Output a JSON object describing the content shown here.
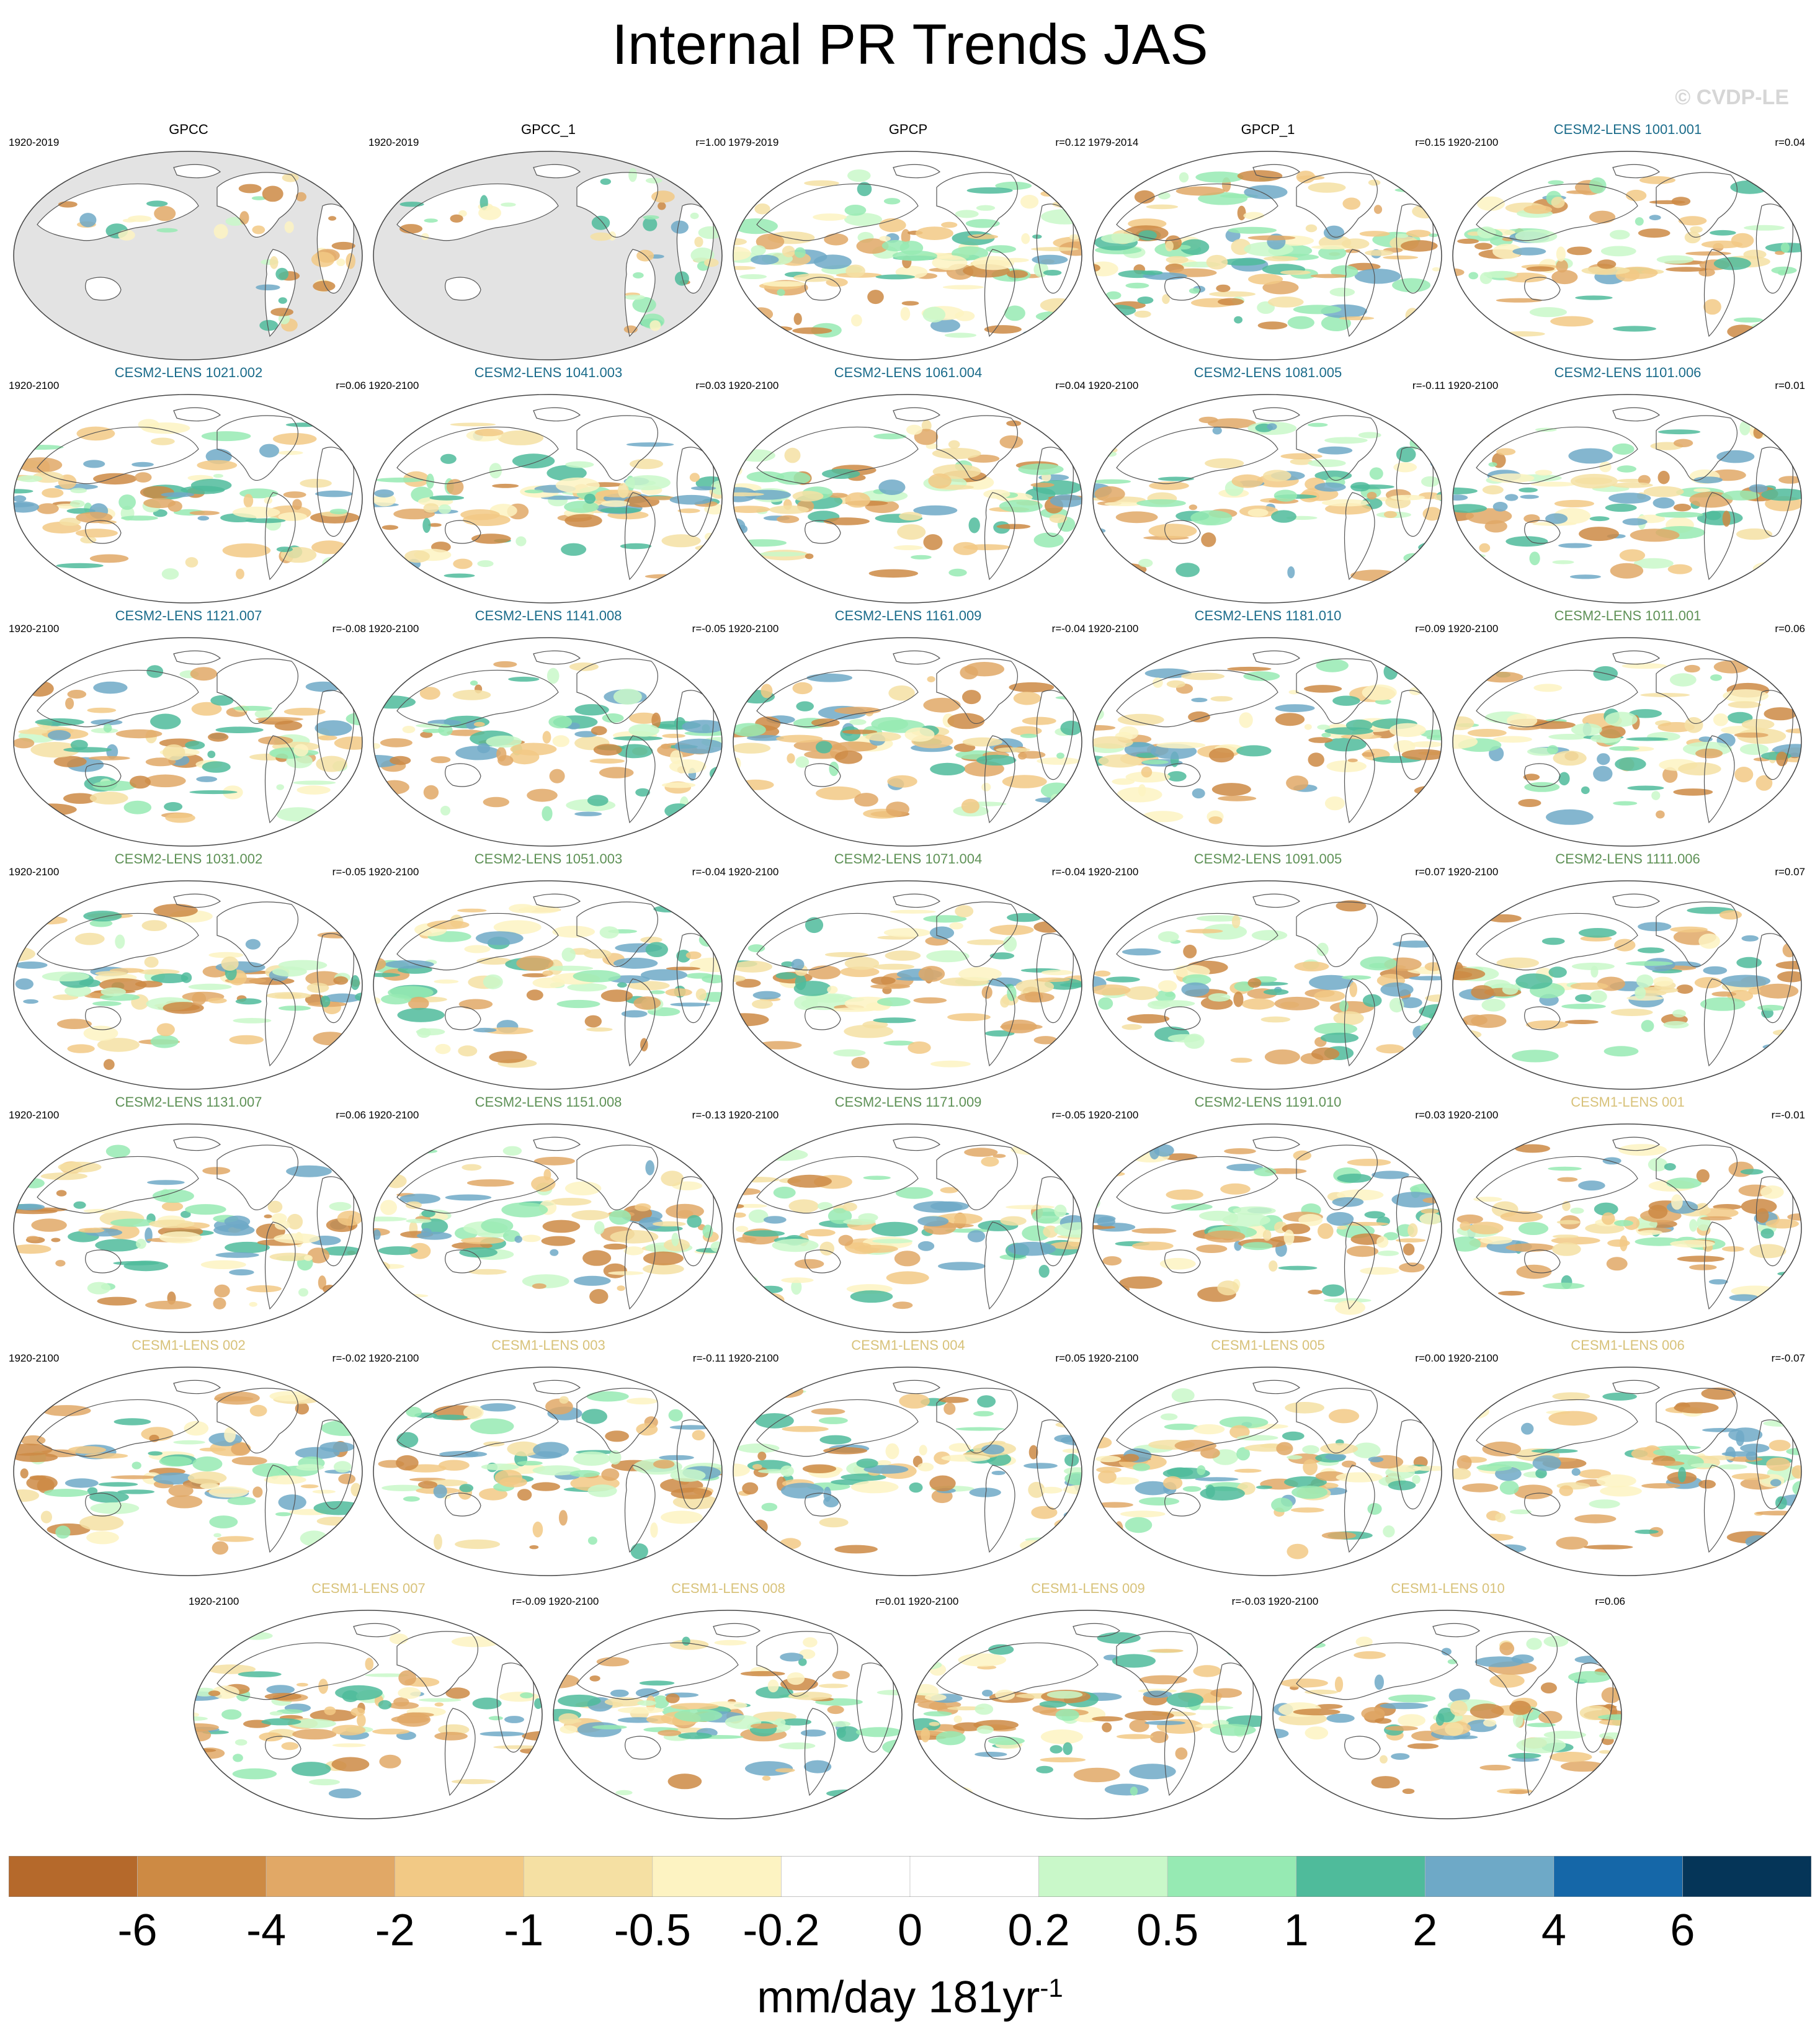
{
  "title": "Internal PR Trends JAS",
  "watermark": "© CVDP-LE",
  "colors": {
    "observation_title": "#000000",
    "cesm2_smbb_title": "#1a6b8a",
    "cesm2_cmip6_title": "#5e9156",
    "cesm1_title": "#d8c27a",
    "map_outline": "#555555",
    "missing_fill": "#e3e3e3",
    "ocean_fill": "#ffffff"
  },
  "chart_data": {
    "type": "heatmap",
    "title": "Internal PR Trends JAS",
    "panels": [
      {
        "name": "GPCC",
        "dates": "1920-2019",
        "corr": "",
        "group": "obs",
        "missing_ocean": true
      },
      {
        "name": "GPCC_1",
        "dates": "1920-2019",
        "corr": "r=1.00",
        "group": "obs",
        "missing_ocean": true
      },
      {
        "name": "GPCP",
        "dates": "1979-2019",
        "corr": "r=0.12",
        "group": "obs",
        "missing_ocean": false
      },
      {
        "name": "GPCP_1",
        "dates": "1979-2014",
        "corr": "r=0.15",
        "group": "obs",
        "missing_ocean": false
      },
      {
        "name": "CESM2-LENS 1001.001",
        "dates": "1920-2100",
        "corr": "r=0.04",
        "group": "cesm2_smbb"
      },
      {
        "name": "CESM2-LENS 1021.002",
        "dates": "1920-2100",
        "corr": "r=0.06",
        "group": "cesm2_smbb"
      },
      {
        "name": "CESM2-LENS 1041.003",
        "dates": "1920-2100",
        "corr": "r=0.03",
        "group": "cesm2_smbb"
      },
      {
        "name": "CESM2-LENS 1061.004",
        "dates": "1920-2100",
        "corr": "r=0.04",
        "group": "cesm2_smbb"
      },
      {
        "name": "CESM2-LENS 1081.005",
        "dates": "1920-2100",
        "corr": "r=-0.11",
        "group": "cesm2_smbb"
      },
      {
        "name": "CESM2-LENS 1101.006",
        "dates": "1920-2100",
        "corr": "r=0.01",
        "group": "cesm2_smbb"
      },
      {
        "name": "CESM2-LENS 1121.007",
        "dates": "1920-2100",
        "corr": "r=-0.08",
        "group": "cesm2_smbb"
      },
      {
        "name": "CESM2-LENS 1141.008",
        "dates": "1920-2100",
        "corr": "r=-0.05",
        "group": "cesm2_smbb"
      },
      {
        "name": "CESM2-LENS 1161.009",
        "dates": "1920-2100",
        "corr": "r=-0.04",
        "group": "cesm2_smbb"
      },
      {
        "name": "CESM2-LENS 1181.010",
        "dates": "1920-2100",
        "corr": "r=0.09",
        "group": "cesm2_smbb"
      },
      {
        "name": "CESM2-LENS 1011.001",
        "dates": "1920-2100",
        "corr": "r=0.06",
        "group": "cesm2_cmip6"
      },
      {
        "name": "CESM2-LENS 1031.002",
        "dates": "1920-2100",
        "corr": "r=-0.05",
        "group": "cesm2_cmip6"
      },
      {
        "name": "CESM2-LENS 1051.003",
        "dates": "1920-2100",
        "corr": "r=-0.04",
        "group": "cesm2_cmip6"
      },
      {
        "name": "CESM2-LENS 1071.004",
        "dates": "1920-2100",
        "corr": "r=-0.04",
        "group": "cesm2_cmip6"
      },
      {
        "name": "CESM2-LENS 1091.005",
        "dates": "1920-2100",
        "corr": "r=0.07",
        "group": "cesm2_cmip6"
      },
      {
        "name": "CESM2-LENS 1111.006",
        "dates": "1920-2100",
        "corr": "r=0.07",
        "group": "cesm2_cmip6"
      },
      {
        "name": "CESM2-LENS 1131.007",
        "dates": "1920-2100",
        "corr": "r=0.06",
        "group": "cesm2_cmip6"
      },
      {
        "name": "CESM2-LENS 1151.008",
        "dates": "1920-2100",
        "corr": "r=-0.13",
        "group": "cesm2_cmip6"
      },
      {
        "name": "CESM2-LENS 1171.009",
        "dates": "1920-2100",
        "corr": "r=-0.05",
        "group": "cesm2_cmip6"
      },
      {
        "name": "CESM2-LENS 1191.010",
        "dates": "1920-2100",
        "corr": "r=0.03",
        "group": "cesm2_cmip6"
      },
      {
        "name": "CESM1-LENS 001",
        "dates": "1920-2100",
        "corr": "r=-0.01",
        "group": "cesm1"
      },
      {
        "name": "CESM1-LENS 002",
        "dates": "1920-2100",
        "corr": "r=-0.02",
        "group": "cesm1"
      },
      {
        "name": "CESM1-LENS 003",
        "dates": "1920-2100",
        "corr": "r=-0.11",
        "group": "cesm1"
      },
      {
        "name": "CESM1-LENS 004",
        "dates": "1920-2100",
        "corr": "r=0.05",
        "group": "cesm1"
      },
      {
        "name": "CESM1-LENS 005",
        "dates": "1920-2100",
        "corr": "r=0.00",
        "group": "cesm1"
      },
      {
        "name": "CESM1-LENS 006",
        "dates": "1920-2100",
        "corr": "r=-0.07",
        "group": "cesm1"
      },
      {
        "name": "CESM1-LENS 007",
        "dates": "1920-2100",
        "corr": "r=-0.09",
        "group": "cesm1"
      },
      {
        "name": "CESM1-LENS 008",
        "dates": "1920-2100",
        "corr": "r=0.01",
        "group": "cesm1"
      },
      {
        "name": "CESM1-LENS 009",
        "dates": "1920-2100",
        "corr": "r=-0.03",
        "group": "cesm1"
      },
      {
        "name": "CESM1-LENS 010",
        "dates": "1920-2100",
        "corr": "r=0.06",
        "group": "cesm1"
      }
    ],
    "colorbar": {
      "levels": [
        -6,
        -4,
        -2,
        -1,
        -0.5,
        -0.2,
        0,
        0.2,
        0.5,
        1,
        2,
        4,
        6
      ],
      "tick_labels": [
        "-6",
        "-4",
        "-2",
        "-1",
        "-0.5",
        "-0.2",
        "0",
        "0.2",
        "0.5",
        "1",
        "2",
        "4",
        "6"
      ],
      "colors": [
        "#b5692b",
        "#cd8a44",
        "#e1a866",
        "#f2c985",
        "#f5e0a3",
        "#fdf3c2",
        "#ffffff",
        "#ffffff",
        "#c9f8c9",
        "#96eab3",
        "#4fbb9b",
        "#6ea9c7",
        "#1567a8",
        "#053558"
      ],
      "units_text": "mm/day 181yr",
      "units_sup": "-1"
    }
  }
}
